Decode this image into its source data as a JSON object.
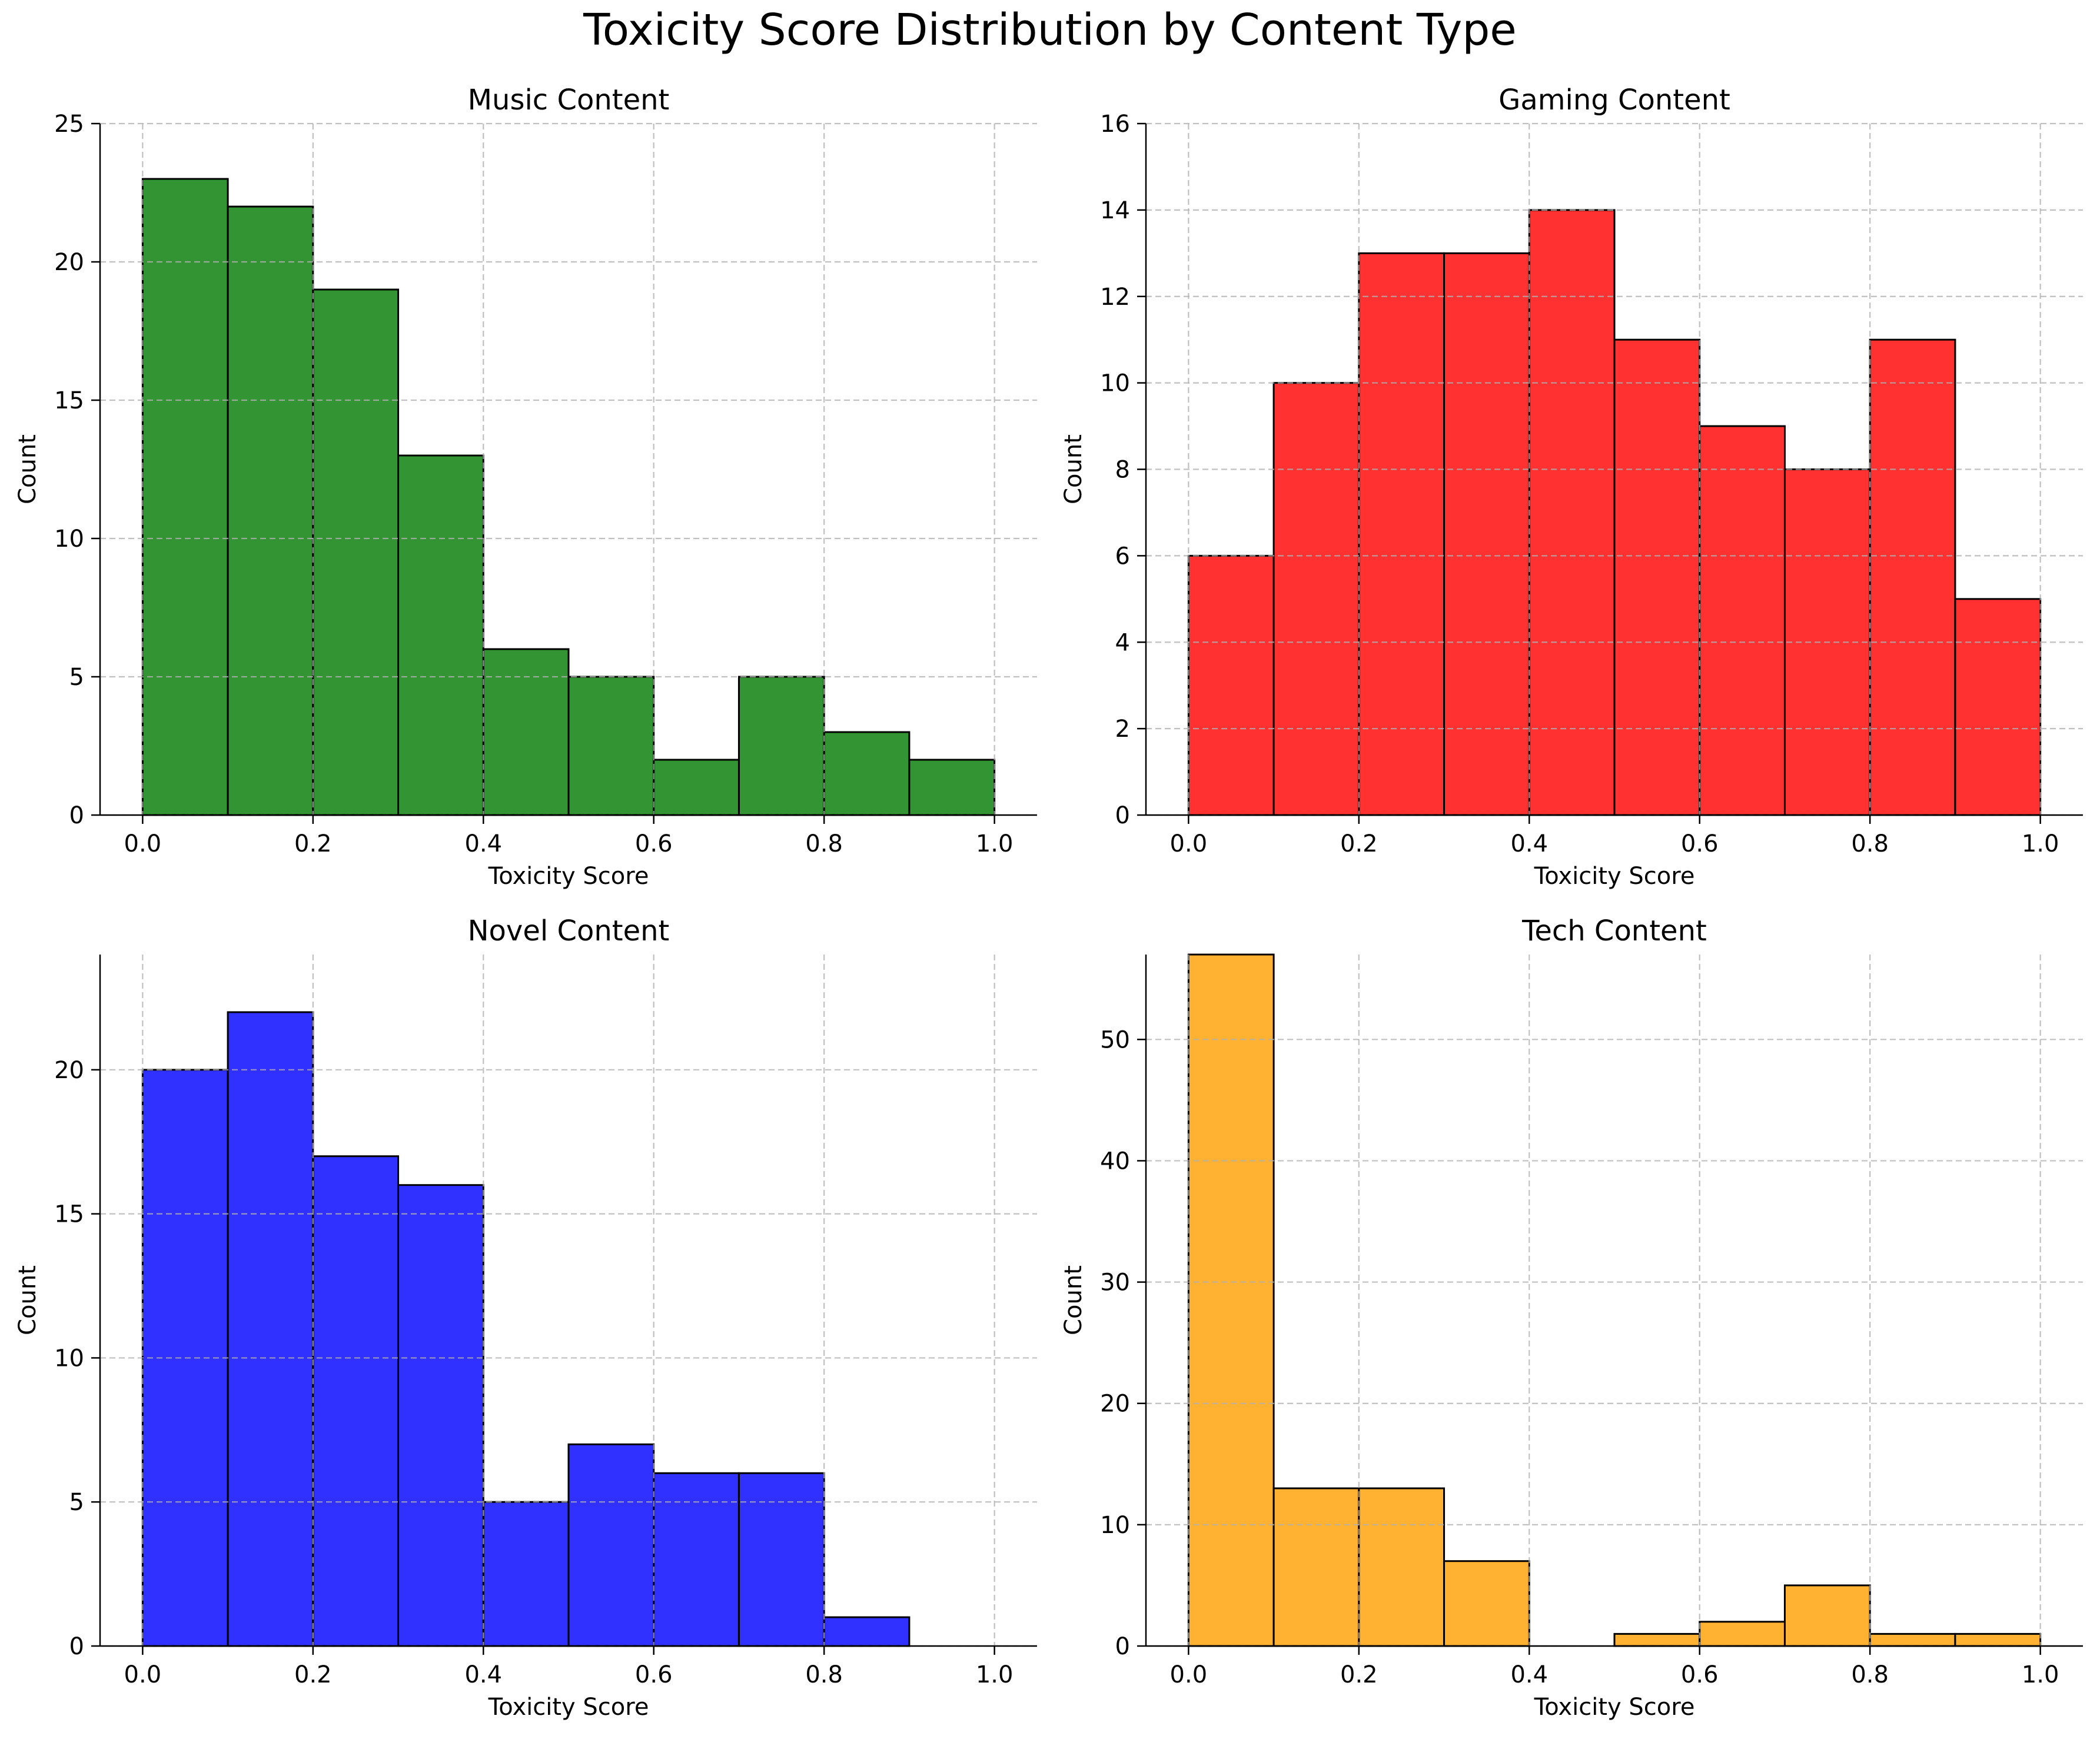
{
  "figure": {
    "title": "Toxicity Score Distribution by Content Type"
  },
  "chart_data": [
    {
      "type": "bar",
      "title": "Music Content",
      "xlabel": "Toxicity Score",
      "ylabel": "Count",
      "color": "#228B22",
      "bin_edges": [
        0.0,
        0.1,
        0.2,
        0.3,
        0.4,
        0.5,
        0.6,
        0.7,
        0.8,
        0.9,
        1.0
      ],
      "values": [
        23,
        22,
        19,
        13,
        6,
        5,
        2,
        5,
        3,
        2
      ],
      "xlim": [
        -0.05,
        1.05
      ],
      "ylim": [
        0,
        25
      ],
      "xticks": [
        0.0,
        0.2,
        0.4,
        0.6,
        0.8,
        1.0
      ],
      "xtick_labels": [
        "0.0",
        "0.2",
        "0.4",
        "0.6",
        "0.8",
        "1.0"
      ],
      "yticks": [
        0,
        5,
        10,
        15,
        20,
        25
      ],
      "ytick_labels": [
        "0",
        "5",
        "10",
        "15",
        "20",
        "25"
      ],
      "grid": true
    },
    {
      "type": "bar",
      "title": "Gaming Content",
      "xlabel": "Toxicity Score",
      "ylabel": "Count",
      "color": "#FF1F1F",
      "bin_edges": [
        0.0,
        0.1,
        0.2,
        0.3,
        0.4,
        0.5,
        0.6,
        0.7,
        0.8,
        0.9,
        1.0
      ],
      "values": [
        6,
        10,
        13,
        13,
        14,
        11,
        9,
        8,
        11,
        5
      ],
      "xlim": [
        -0.05,
        1.05
      ],
      "ylim": [
        0,
        16
      ],
      "xticks": [
        0.0,
        0.2,
        0.4,
        0.6,
        0.8,
        1.0
      ],
      "xtick_labels": [
        "0.0",
        "0.2",
        "0.4",
        "0.6",
        "0.8",
        "1.0"
      ],
      "yticks": [
        0,
        2,
        4,
        6,
        8,
        10,
        12,
        14,
        16
      ],
      "ytick_labels": [
        "0",
        "2",
        "4",
        "6",
        "8",
        "10",
        "12",
        "14",
        "16"
      ],
      "grid": true
    },
    {
      "type": "bar",
      "title": "Novel Content",
      "xlabel": "Toxicity Score",
      "ylabel": "Count",
      "color": "#1F1FFF",
      "bin_edges": [
        0.0,
        0.1,
        0.2,
        0.3,
        0.4,
        0.5,
        0.6,
        0.7,
        0.8,
        0.9,
        1.0
      ],
      "values": [
        20,
        22,
        17,
        16,
        5,
        7,
        6,
        6,
        1,
        0
      ],
      "xlim": [
        -0.05,
        1.05
      ],
      "ylim": [
        0,
        24
      ],
      "xticks": [
        0.0,
        0.2,
        0.4,
        0.6,
        0.8,
        1.0
      ],
      "xtick_labels": [
        "0.0",
        "0.2",
        "0.4",
        "0.6",
        "0.8",
        "1.0"
      ],
      "yticks": [
        0,
        5,
        10,
        15,
        20
      ],
      "ytick_labels": [
        "0",
        "5",
        "10",
        "15",
        "20"
      ],
      "grid": true
    },
    {
      "type": "bar",
      "title": "Tech Content",
      "xlabel": "Toxicity Score",
      "ylabel": "Count",
      "color": "#FFAB1F",
      "bin_edges": [
        0.0,
        0.1,
        0.2,
        0.3,
        0.4,
        0.5,
        0.6,
        0.7,
        0.8,
        0.9,
        1.0
      ],
      "values": [
        57,
        13,
        13,
        7,
        0,
        1,
        2,
        5,
        1,
        1
      ],
      "xlim": [
        -0.05,
        1.05
      ],
      "ylim": [
        0,
        57
      ],
      "xticks": [
        0.0,
        0.2,
        0.4,
        0.6,
        0.8,
        1.0
      ],
      "xtick_labels": [
        "0.0",
        "0.2",
        "0.4",
        "0.6",
        "0.8",
        "1.0"
      ],
      "yticks": [
        0,
        10,
        20,
        30,
        40,
        50
      ],
      "ytick_labels": [
        "0",
        "10",
        "20",
        "30",
        "40",
        "50"
      ],
      "grid": true
    }
  ]
}
